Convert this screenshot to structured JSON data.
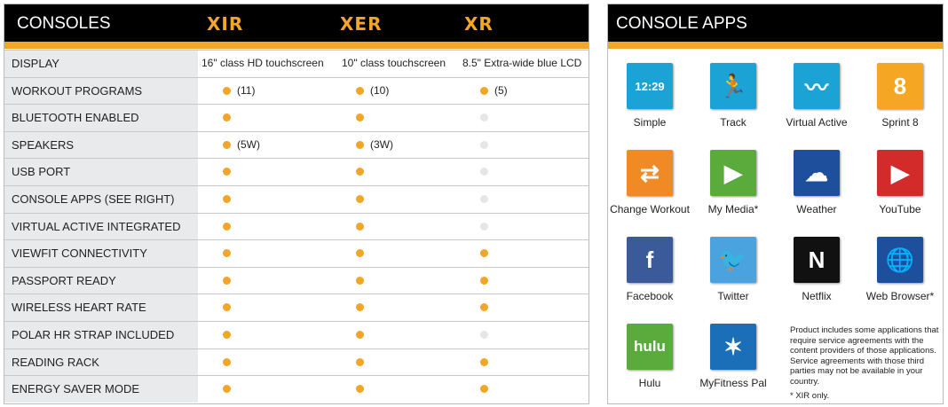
{
  "consoles": {
    "title": "CONSOLES",
    "models": [
      "XIR",
      "XER",
      "XR"
    ],
    "rows": [
      {
        "label": "DISPLAY",
        "values": [
          {
            "text": "16\" class HD touchscreen"
          },
          {
            "text": "10\" class touchscreen"
          },
          {
            "text": "8.5\" Extra-wide blue LCD"
          }
        ]
      },
      {
        "label": "WORKOUT PROGRAMS",
        "values": [
          {
            "dot": true,
            "text": "(11)"
          },
          {
            "dot": true,
            "text": "(10)"
          },
          {
            "dot": true,
            "text": "(5)"
          }
        ]
      },
      {
        "label": "BLUETOOTH ENABLED",
        "values": [
          {
            "dot": true
          },
          {
            "dot": true
          },
          {
            "dot": false
          }
        ]
      },
      {
        "label": "SPEAKERS",
        "values": [
          {
            "dot": true,
            "text": "(5W)"
          },
          {
            "dot": true,
            "text": "(3W)"
          },
          {
            "dot": false
          }
        ]
      },
      {
        "label": "USB PORT",
        "values": [
          {
            "dot": true
          },
          {
            "dot": true
          },
          {
            "dot": false
          }
        ]
      },
      {
        "label": "CONSOLE APPS (SEE RIGHT)",
        "values": [
          {
            "dot": true
          },
          {
            "dot": true
          },
          {
            "dot": false
          }
        ]
      },
      {
        "label": "VIRTUAL ACTIVE INTEGRATED",
        "values": [
          {
            "dot": true
          },
          {
            "dot": true
          },
          {
            "dot": false
          }
        ]
      },
      {
        "label": "VIEWFIT CONNECTIVITY",
        "values": [
          {
            "dot": true
          },
          {
            "dot": true
          },
          {
            "dot": true
          }
        ]
      },
      {
        "label": "PASSPORT READY",
        "values": [
          {
            "dot": true
          },
          {
            "dot": true
          },
          {
            "dot": true
          }
        ]
      },
      {
        "label": "WIRELESS HEART RATE",
        "values": [
          {
            "dot": true
          },
          {
            "dot": true
          },
          {
            "dot": true
          }
        ]
      },
      {
        "label": "POLAR HR STRAP INCLUDED",
        "values": [
          {
            "dot": true
          },
          {
            "dot": true
          },
          {
            "dot": false
          }
        ]
      },
      {
        "label": "READING RACK",
        "values": [
          {
            "dot": true
          },
          {
            "dot": true
          },
          {
            "dot": true
          }
        ]
      },
      {
        "label": "ENERGY SAVER MODE",
        "values": [
          {
            "dot": true
          },
          {
            "dot": true
          },
          {
            "dot": true
          }
        ]
      }
    ]
  },
  "apps": {
    "title": "CONSOLE APPS",
    "items": [
      {
        "label": "Simple",
        "icon": "clock-icon",
        "glyph": "12:29",
        "color": "#1ba3d6"
      },
      {
        "label": "Track",
        "icon": "runner-track-icon",
        "glyph": "🏃",
        "color": "#1ba3d6"
      },
      {
        "label": "Virtual Active",
        "icon": "road-icon",
        "glyph": "〰",
        "color": "#1ba3d6"
      },
      {
        "label": "Sprint 8",
        "icon": "sprint8-icon",
        "glyph": "8",
        "color": "#f5a623"
      },
      {
        "label": "Change Workout",
        "icon": "change-workout-icon",
        "glyph": "⇄",
        "color": "#f08a24"
      },
      {
        "label": "My Media*",
        "icon": "play-icon",
        "glyph": "▶",
        "color": "#5aab3c"
      },
      {
        "label": "Weather",
        "icon": "cloud-icon",
        "glyph": "☁",
        "color": "#1d4f9c"
      },
      {
        "label": "YouTube",
        "icon": "youtube-icon",
        "glyph": "▶",
        "color": "#d32a2a"
      },
      {
        "label": "Facebook",
        "icon": "facebook-icon",
        "glyph": "f",
        "color": "#3b5a9a"
      },
      {
        "label": "Twitter",
        "icon": "twitter-icon",
        "glyph": "🐦",
        "color": "#4aa3df"
      },
      {
        "label": "Netflix",
        "icon": "netflix-icon",
        "glyph": "N",
        "color": "#111"
      },
      {
        "label": "Web Browser*",
        "icon": "globe-icon",
        "glyph": "🌐",
        "color": "#1d4f9c"
      },
      {
        "label": "Hulu",
        "icon": "hulu-icon",
        "glyph": "hulu",
        "color": "#5aab3c"
      },
      {
        "label": "MyFitness Pal",
        "icon": "myfitnesspal-icon",
        "glyph": "✶",
        "color": "#1a6fb8"
      }
    ],
    "note": "Product includes some applications that require service agreements with the content providers of those applications. Service agreements with those third parties may not be available in your country.",
    "footnote": "* XIR only."
  },
  "colors": {
    "accent": "#f5a623",
    "header": "#000000",
    "label_bg": "#e9eaeb",
    "dot_off": "#e6e6e6"
  }
}
